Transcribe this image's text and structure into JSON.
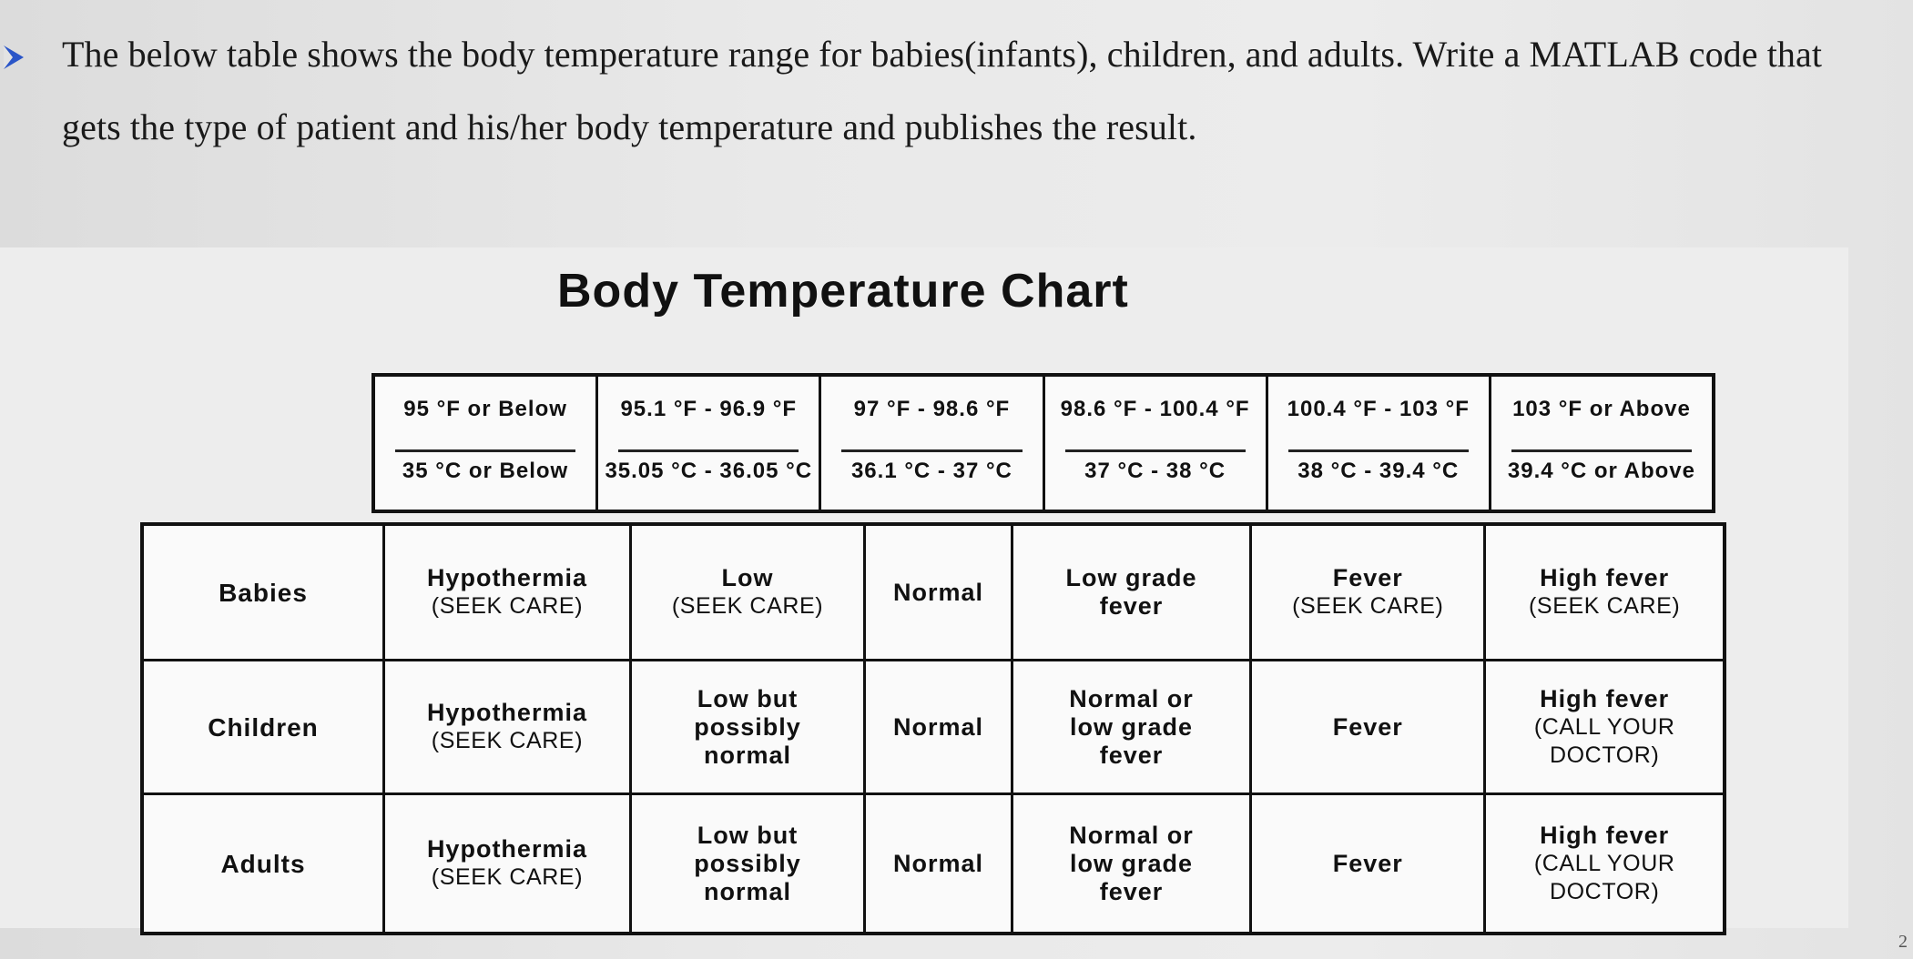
{
  "instruction": {
    "line1": "The below table shows the body temperature range for babies(infants), children, and adults. Write a MATLAB code that",
    "line2": "gets the type of patient and his/her body temperature and publishes the result."
  },
  "chart": {
    "title": "Body Temperature Chart",
    "columns": [
      {
        "fahrenheit": "95 °F or Below",
        "celsius": "35 °C or Below"
      },
      {
        "fahrenheit": "95.1 °F - 96.9 °F",
        "celsius": "35.05 °C - 36.05 °C"
      },
      {
        "fahrenheit": "97 °F - 98.6 °F",
        "celsius": "36.1 °C - 37 °C"
      },
      {
        "fahrenheit": "98.6 °F - 100.4 °F",
        "celsius": "37 °C - 38 °C"
      },
      {
        "fahrenheit": "100.4 °F - 103 °F",
        "celsius": "38 °C - 39.4 °C"
      },
      {
        "fahrenheit": "103 °F or Above",
        "celsius": "39.4 °C or Above"
      }
    ],
    "rows": [
      {
        "label": "Babies",
        "cells": [
          {
            "main": "Hypothermia",
            "sub": "(SEEK CARE)"
          },
          {
            "main": "Low",
            "sub": "(SEEK CARE)"
          },
          {
            "main": "Normal",
            "sub": ""
          },
          {
            "main": "Low grade fever",
            "sub": ""
          },
          {
            "main": "Fever",
            "sub": "(SEEK CARE)"
          },
          {
            "main": "High fever",
            "sub": "(SEEK CARE)"
          }
        ]
      },
      {
        "label": "Children",
        "cells": [
          {
            "main": "Hypothermia",
            "sub": "(SEEK CARE)"
          },
          {
            "main": "Low but possibly normal",
            "sub": ""
          },
          {
            "main": "Normal",
            "sub": ""
          },
          {
            "main": "Normal or low grade fever",
            "sub": ""
          },
          {
            "main": "Fever",
            "sub": ""
          },
          {
            "main": "High fever",
            "sub": "(CALL YOUR DOCTOR)"
          }
        ]
      },
      {
        "label": "Adults",
        "cells": [
          {
            "main": "Hypothermia",
            "sub": "(SEEK CARE)"
          },
          {
            "main": "Low but possibly normal",
            "sub": ""
          },
          {
            "main": "Normal",
            "sub": ""
          },
          {
            "main": "Normal or low grade fever",
            "sub": ""
          },
          {
            "main": "Fever",
            "sub": ""
          },
          {
            "main": "High fever",
            "sub": "(CALL YOUR DOCTOR)"
          }
        ]
      }
    ]
  },
  "page_number": "2"
}
